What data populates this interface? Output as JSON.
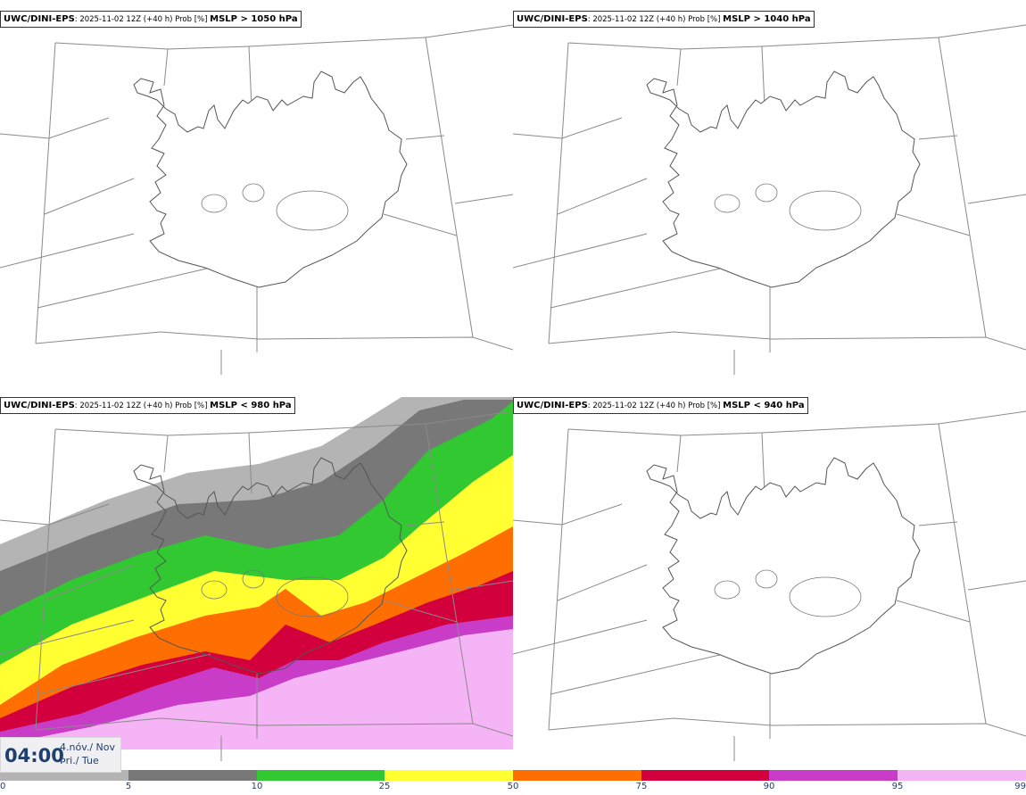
{
  "panels": [
    {
      "model": "UWC/DINI-EPS",
      "meta": ": 2025-11-02 12Z (+40 h) Prob [%]",
      "threshold": "MSLP > 1050 hPa",
      "filled": false
    },
    {
      "model": "UWC/DINI-EPS",
      "meta": ": 2025-11-02 12Z (+40 h) Prob [%]",
      "threshold": "MSLP > 1040 hPa",
      "filled": false
    },
    {
      "model": "UWC/DINI-EPS",
      "meta": ": 2025-11-02 12Z (+40 h) Prob [%]",
      "threshold": "MSLP < 980 hPa",
      "filled": true
    },
    {
      "model": "UWC/DINI-EPS",
      "meta": ": 2025-11-02 12Z (+40 h) Prob [%]",
      "threshold": "MSLP < 940 hPa",
      "filled": false
    }
  ],
  "time": {
    "clock": "04:00",
    "date_local": "4.nóv./ Nov",
    "weekday": "Þri./ Tue"
  },
  "colorbar": {
    "ticks": [
      "0",
      "5",
      "10",
      "25",
      "50",
      "75",
      "90",
      "95",
      "99"
    ],
    "colors": [
      "#ffffff",
      "#b4b4b4",
      "#787878",
      "#32c832",
      "#ffff32",
      "#ff6e00",
      "#d2003c",
      "#c83cc8",
      "#f5b4f5"
    ]
  }
}
